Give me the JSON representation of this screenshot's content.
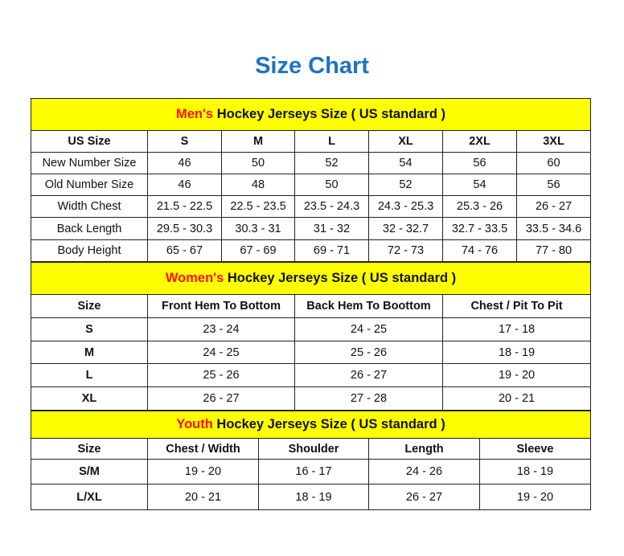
{
  "title": "Size Chart",
  "accent_color": "#1a74c4",
  "section_bg": "#ffff00",
  "highlight_color": "#ff1010",
  "men": {
    "heading_highlight": "Men's",
    "heading_rest": " Hockey Jerseys Size ( US standard )",
    "columns": [
      "US Size",
      "S",
      "M",
      "L",
      "XL",
      "2XL",
      "3XL"
    ],
    "rows": [
      [
        "New Number Size",
        "46",
        "50",
        "52",
        "54",
        "56",
        "60"
      ],
      [
        "Old Number Size",
        "46",
        "48",
        "50",
        "52",
        "54",
        "56"
      ],
      [
        "Width Chest",
        "21.5 - 22.5",
        "22.5 - 23.5",
        "23.5 - 24.3",
        "24.3 - 25.3",
        "25.3 - 26",
        "26 - 27"
      ],
      [
        "Back Length",
        "29.5 - 30.3",
        "30.3 - 31",
        "31 - 32",
        "32 - 32.7",
        "32.7 - 33.5",
        "33.5 - 34.6"
      ],
      [
        "Body Height",
        "65 - 67",
        "67 - 69",
        "69 - 71",
        "72 - 73",
        "74 - 76",
        "77 - 80"
      ]
    ]
  },
  "women": {
    "heading_highlight": "Women's",
    "heading_rest": " Hockey Jerseys Size ( US standard )",
    "columns": [
      "Size",
      "Front Hem To Bottom",
      "Back Hem To Boottom",
      "Chest / Pit To Pit"
    ],
    "rows": [
      [
        "S",
        "23 - 24",
        "24 - 25",
        "17 - 18"
      ],
      [
        "M",
        "24 - 25",
        "25 - 26",
        "18 - 19"
      ],
      [
        "L",
        "25 - 26",
        "26 - 27",
        "19 - 20"
      ],
      [
        "XL",
        "26 - 27",
        "27 - 28",
        "20 - 21"
      ]
    ]
  },
  "youth": {
    "heading_highlight": "Youth",
    "heading_rest": " Hockey Jerseys Size ( US standard )",
    "columns": [
      "Size",
      "Chest / Width",
      "Shoulder",
      "Length",
      "Sleeve"
    ],
    "rows": [
      [
        "S/M",
        "19 - 20",
        "16 - 17",
        "24 - 26",
        "18 - 19"
      ],
      [
        "L/XL",
        "20 - 21",
        "18 - 19",
        "26 - 27",
        "19 - 20"
      ]
    ]
  }
}
